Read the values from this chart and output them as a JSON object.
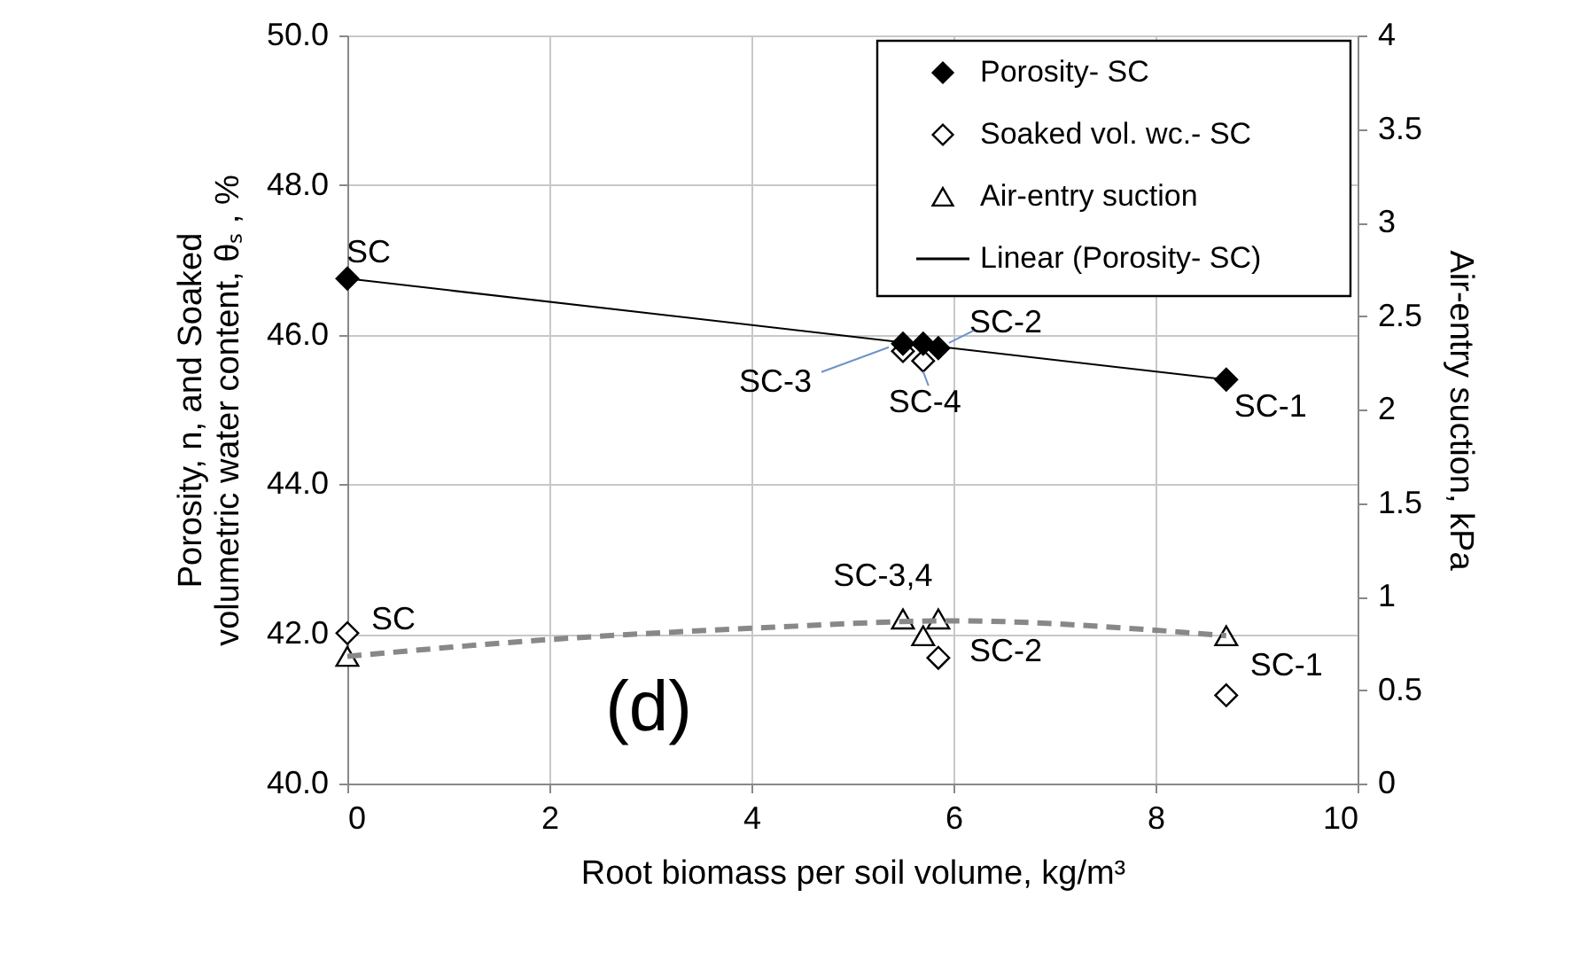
{
  "chart_data": {
    "type": "scatter",
    "xlabel": "Root biomass per soil volume, kg/m³",
    "ylabel": "Porosity, n, and Soaked volumetric water content, θₛ , %",
    "y2label": "Air-entry suction, kPa",
    "xlim": [
      0,
      10
    ],
    "xticks": [
      0,
      2,
      4,
      6,
      8,
      10
    ],
    "ylim": [
      40,
      50
    ],
    "yticks": [
      {
        "value": 40,
        "label": "40.0"
      },
      {
        "value": 42,
        "label": "42.0"
      },
      {
        "value": 44,
        "label": "44.0"
      },
      {
        "value": 46,
        "label": "46.0"
      },
      {
        "value": 48,
        "label": "48.0"
      },
      {
        "value": 50,
        "label": "50.0"
      }
    ],
    "y2lim": [
      0,
      4
    ],
    "y2ticks": [
      0,
      0.5,
      1,
      1.5,
      2,
      2.5,
      3,
      3.5,
      4
    ],
    "grid": true,
    "legend": "top right",
    "series": [
      {
        "name": "Porosity- SC",
        "marker": "diamond",
        "color": "#000000",
        "x": [
          0,
          5.5,
          5.7,
          5.85,
          8.7
        ],
        "values": [
          46.75,
          45.88,
          45.88,
          45.82,
          45.4
        ]
      },
      {
        "name": "Soaked vol. wc.- SC",
        "marker": "diamond",
        "color": "#ffffff",
        "x": [
          0,
          5.5,
          5.7,
          5.85,
          8.7
        ],
        "values": [
          42.01,
          45.78,
          45.65,
          41.68,
          41.18
        ]
      },
      {
        "name": "Air-entry suction",
        "marker": "triangle",
        "axis": "y2",
        "color": "#ffffff",
        "x": [
          0,
          5.5,
          5.7,
          5.85,
          8.7
        ],
        "values": [
          0.68,
          0.88,
          0.79,
          0.88,
          0.79
        ]
      },
      {
        "type": "line",
        "line_style": "dashed",
        "axis": "y2",
        "color": "#888888",
        "x": [
          0,
          2,
          4,
          6,
          8,
          8.7
        ],
        "values": [
          0.68,
          0.77,
          0.83,
          0.87,
          0.82,
          0.79
        ]
      },
      {
        "name": "Linear (Porosity- SC)",
        "type": "line",
        "line_style": "solid",
        "color": "#000000",
        "x": [
          0,
          8.7
        ],
        "values": [
          46.75,
          45.4
        ]
      }
    ],
    "annotations": [
      {
        "text": "SC",
        "x": 0,
        "y": 46.75
      },
      {
        "text": "SC-2",
        "x": 5.85,
        "y": 45.82
      },
      {
        "text": "SC-3",
        "x": 5.5,
        "y": 45.88
      },
      {
        "text": "SC-4",
        "x": 5.7,
        "y": 45.65
      },
      {
        "text": "SC-1",
        "x": 8.7,
        "y": 45.4
      },
      {
        "text": "SC",
        "x": 0,
        "y": 42.01
      },
      {
        "text": "SC-3,4",
        "x": 5.6,
        "y": 42.21
      },
      {
        "text": "SC-2",
        "x": 5.85,
        "y": 41.68
      },
      {
        "text": "SC-1",
        "x": 8.7,
        "y": 41.18
      },
      "(d)"
    ]
  }
}
